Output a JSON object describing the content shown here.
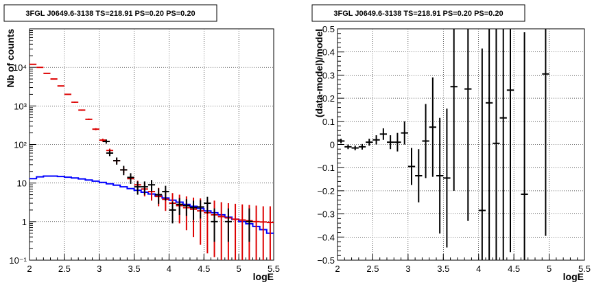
{
  "chart_data": [
    {
      "type": "line",
      "title": "3FGL J0649.6-3138 TS=218.91 PS=0.20 PS=0.20",
      "xlabel": "logE",
      "ylabel": "Nb of counts",
      "xlim": [
        2,
        5.5
      ],
      "ylim": [
        0.1,
        100000
      ],
      "y_scale": "log",
      "grid": true,
      "x_ticks": [
        "2",
        "2.5",
        "3",
        "3.5",
        "4",
        "4.5",
        "5",
        "5.5"
      ],
      "y_ticks": [
        "10⁻¹",
        "1",
        "10",
        "10²",
        "10³",
        "10⁴"
      ],
      "x_bin_edges": [
        2.0,
        2.1,
        2.2,
        2.3,
        2.4,
        2.5,
        2.6,
        2.7,
        2.8,
        2.9,
        3.0,
        3.1,
        3.2,
        3.3,
        3.4,
        3.5,
        3.6,
        3.7,
        3.8,
        3.9,
        4.0,
        4.1,
        4.2,
        4.3,
        4.4,
        4.5,
        4.6,
        4.7,
        4.8,
        4.9,
        5.0,
        5.1,
        5.2,
        5.3,
        5.4,
        5.5
      ],
      "series": [
        {
          "color": "#0000ff",
          "style": "step",
          "values": [
            13,
            14.5,
            15.2,
            15.2,
            14.8,
            14.2,
            13.6,
            12.8,
            12,
            11.2,
            10.4,
            9.6,
            8.8,
            8,
            7.2,
            6.5,
            5.8,
            5.2,
            4.6,
            4.1,
            3.6,
            3.2,
            2.8,
            2.5,
            2.2,
            1.9,
            1.7,
            1.5,
            1.3,
            1.15,
            1.0,
            0.88,
            0.75,
            0.62,
            0.5,
            0.38
          ]
        },
        {
          "color": "#dd0000",
          "style": "errorbar",
          "x": [
            2.05,
            2.15,
            2.25,
            2.35,
            2.45,
            2.55,
            2.65,
            2.75,
            2.85,
            2.95,
            3.05,
            3.15,
            3.25,
            3.35,
            3.45,
            3.55,
            3.65,
            3.75,
            3.85,
            3.95,
            4.05,
            4.15,
            4.25,
            4.35,
            4.45,
            4.55,
            4.65,
            4.75,
            4.85,
            4.95,
            5.05,
            5.15,
            5.25,
            5.35,
            5.45
          ],
          "y": [
            12000,
            10000,
            7000,
            5000,
            3300,
            2000,
            1250,
            780,
            450,
            250,
            130,
            70,
            38,
            22,
            13,
            9,
            7,
            6,
            4.5,
            3.8,
            3,
            2.6,
            2.3,
            2.1,
            1.9,
            1.7,
            1.5,
            1.35,
            1.25,
            1.15,
            1.1,
            1.05,
            1.0,
            0.98,
            0.95
          ],
          "y_low": [
            11800,
            9850,
            6900,
            4900,
            3250,
            1950,
            1200,
            750,
            430,
            235,
            118,
            62,
            32,
            18,
            10.5,
            6.5,
            4.5,
            3.5,
            2.5,
            1.9,
            1.3,
            0.9,
            0.6,
            0.4,
            0.25,
            0.15,
            0.12,
            0.1,
            0.1,
            0.1,
            0.1,
            0.1,
            0.1,
            0.1,
            0.1
          ],
          "y_high": [
            12200,
            10150,
            7100,
            5100,
            3350,
            2050,
            1300,
            810,
            470,
            265,
            142,
            78,
            44,
            26,
            16,
            11.5,
            10,
            9,
            7.5,
            6.5,
            5.5,
            5,
            4.5,
            4.2,
            4,
            3.7,
            3.5,
            3.2,
            3,
            2.9,
            2.8,
            2.7,
            2.6,
            2.5,
            2.5
          ]
        },
        {
          "color": "#000000",
          "style": "errorbar",
          "x": [
            3.1,
            3.15,
            3.25,
            3.35,
            3.45,
            3.55,
            3.65,
            3.75,
            3.85,
            3.95,
            4.05,
            4.15,
            4.25,
            4.35,
            4.45,
            4.55,
            4.65,
            4.85,
            5.15
          ],
          "y": [
            120,
            60,
            38,
            22,
            14,
            8,
            8,
            9,
            5,
            6,
            2,
            2.8,
            2.6,
            2.3,
            2.4,
            3,
            1,
            1,
            1
          ],
          "y_low": [
            105,
            50,
            30,
            16,
            9.5,
            5,
            5,
            6,
            2.9,
            3.5,
            0.9,
            1.5,
            1.4,
            1.1,
            1.2,
            1.6,
            0.3,
            0.3,
            0.3
          ],
          "y_high": [
            135,
            70,
            46,
            28,
            18,
            11,
            11,
            12,
            7.3,
            8.5,
            3.3,
            4.1,
            3.8,
            3.5,
            3.6,
            4.4,
            2.2,
            2.2,
            2.2
          ]
        }
      ]
    },
    {
      "type": "scatter",
      "title": "3FGL J0649.6-3138 TS=218.91 PS=0.20 PS=0.20",
      "xlabel": "logE",
      "ylabel": "(data-model)/model",
      "xlim": [
        2,
        5.5
      ],
      "ylim": [
        -0.5,
        0.5
      ],
      "grid": true,
      "x_ticks": [
        "2",
        "2.5",
        "3",
        "3.5",
        "4",
        "4.5",
        "5",
        "5.5"
      ],
      "y_ticks": [
        "−0.5",
        "−0.4",
        "−0.3",
        "−0.2",
        "−0.1",
        "0",
        "0.1",
        "0.2",
        "0.3",
        "0.4",
        "0.5"
      ],
      "series": [
        {
          "color": "#000000",
          "style": "errorbar",
          "x": [
            2.05,
            2.15,
            2.25,
            2.35,
            2.45,
            2.55,
            2.65,
            2.75,
            2.85,
            2.95,
            3.05,
            3.15,
            3.25,
            3.35,
            3.45,
            3.55,
            3.65,
            3.85,
            4.05,
            4.15,
            4.25,
            4.35,
            4.45,
            4.65,
            4.95
          ],
          "y": [
            0.015,
            -0.01,
            -0.015,
            -0.01,
            0.01,
            0.02,
            0.045,
            0.01,
            0.01,
            0.05,
            -0.095,
            -0.135,
            0.015,
            0.075,
            -0.135,
            -0.145,
            0.25,
            0.24,
            -0.285,
            0.18,
            0.005,
            0.115,
            0.235,
            -0.215,
            0.305
          ],
          "y_err": [
            0.01,
            0.01,
            0.01,
            0.012,
            0.015,
            0.02,
            0.025,
            0.03,
            0.04,
            0.05,
            0.08,
            0.115,
            0.16,
            0.215,
            0.25,
            0.3,
            0.45,
            0.57,
            0.7,
            0.7,
            0.7,
            0.7,
            0.7,
            0.7,
            0.7
          ]
        }
      ]
    }
  ]
}
